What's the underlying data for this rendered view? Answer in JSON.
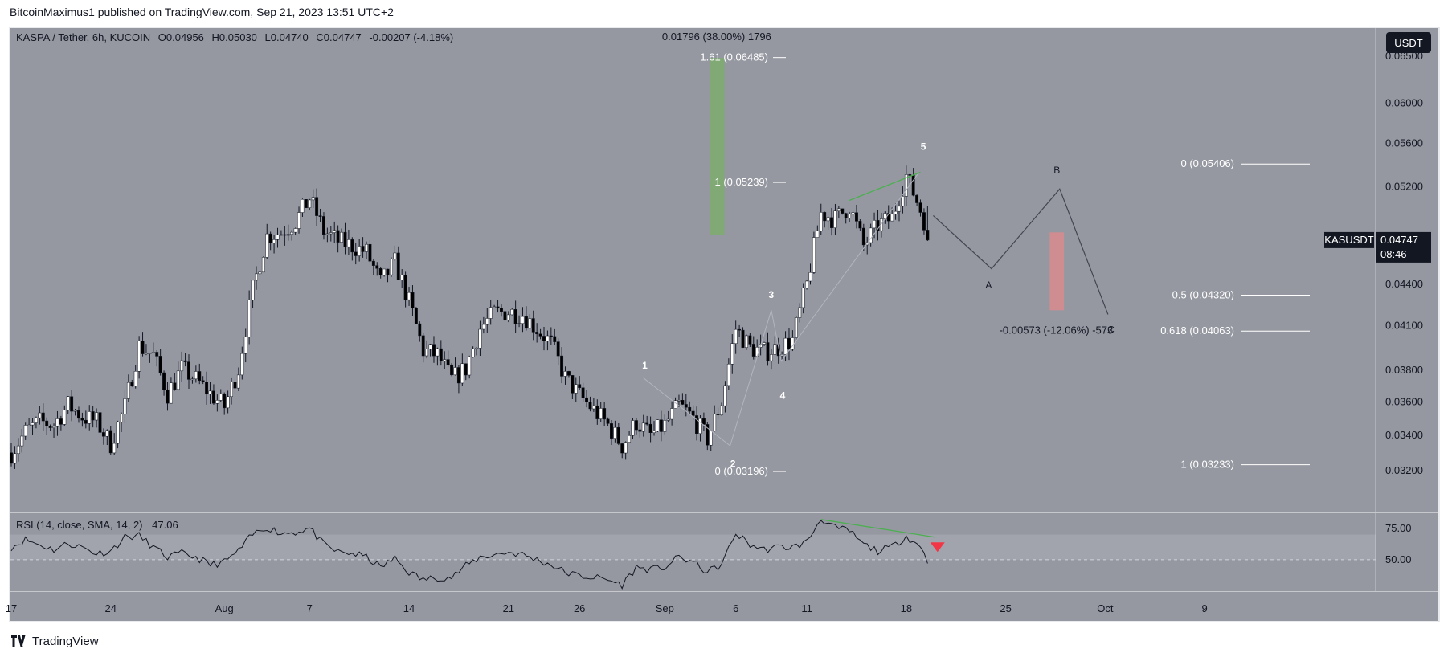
{
  "header": {
    "publisher": "BitcoinMaximus1 published on TradingView.com, Sep 21, 2023 13:51 UTC+2"
  },
  "footer": {
    "brand": "TradingView"
  },
  "legend": {
    "symbol": "KASPA / Tether, 6h, KUCOIN",
    "open_label": "O",
    "open": "0.04956",
    "high_label": "H",
    "high": "0.05030",
    "low_label": "L",
    "low": "0.04740",
    "close_label": "C",
    "close": "0.04747",
    "change": "-0.00207 (-4.18%)"
  },
  "currency_button": "USDT",
  "price_tag": {
    "symbol": "KASUSDT",
    "price": "0.04747",
    "countdown": "08:46"
  },
  "colors": {
    "plot_bg": "#9598a1",
    "up": "#ffffff",
    "down": "#000000",
    "wick": "#131722",
    "green_box": "#7dab6f",
    "red_box": "#d98b8e",
    "trend": "#4caf50",
    "rsi_line": "#131722",
    "rsi_arrow": "#f23645"
  },
  "chart_data": [
    {
      "type": "candlestick",
      "title": "KASPA / Tether, 6h, KUCOIN",
      "x_ticks": [
        "17",
        "24",
        "Aug",
        "7",
        "14",
        "21",
        "26",
        "Sep",
        "6",
        "11",
        "18",
        "25",
        "Oct",
        "9"
      ],
      "y_ticks": [
        "0.06500",
        "0.06000",
        "0.05600",
        "0.05200",
        "0.04400",
        "0.04100",
        "0.03800",
        "0.03600",
        "0.03400",
        "0.03200"
      ],
      "ylim": [
        0.0298,
        0.0682
      ],
      "y_scale": "log",
      "x_range_days": [
        "Jul 17",
        "Oct 9"
      ],
      "last_price": 0.04747,
      "close_anchors": [
        [
          0,
          0.033
        ],
        [
          1,
          0.0342
        ],
        [
          2,
          0.0348
        ],
        [
          3,
          0.0346
        ],
        [
          4,
          0.0358
        ],
        [
          5,
          0.0351
        ],
        [
          6,
          0.0348
        ],
        [
          7,
          0.0335
        ],
        [
          8,
          0.0357
        ],
        [
          9,
          0.0396
        ],
        [
          10,
          0.039
        ],
        [
          11,
          0.0365
        ],
        [
          12,
          0.0381
        ],
        [
          13,
          0.0374
        ],
        [
          14,
          0.0365
        ],
        [
          15,
          0.0357
        ],
        [
          16,
          0.0381
        ],
        [
          17,
          0.0436
        ],
        [
          18,
          0.0478
        ],
        [
          19,
          0.0481
        ],
        [
          20,
          0.049
        ],
        [
          21,
          0.051
        ],
        [
          22,
          0.0482
        ],
        [
          23,
          0.0474
        ],
        [
          24,
          0.047
        ],
        [
          25,
          0.0465
        ],
        [
          26,
          0.0441
        ],
        [
          27,
          0.0457
        ],
        [
          28,
          0.0427
        ],
        [
          29,
          0.0393
        ],
        [
          30,
          0.039
        ],
        [
          31,
          0.0374
        ],
        [
          32,
          0.0381
        ],
        [
          33,
          0.0408
        ],
        [
          34,
          0.0419
        ],
        [
          35,
          0.042
        ],
        [
          36,
          0.0418
        ],
        [
          37,
          0.0408
        ],
        [
          38,
          0.0398
        ],
        [
          39,
          0.0375
        ],
        [
          40,
          0.0364
        ],
        [
          41,
          0.0355
        ],
        [
          42,
          0.0346
        ],
        [
          43,
          0.0334
        ],
        [
          44,
          0.0348
        ],
        [
          45,
          0.034
        ],
        [
          46,
          0.0346
        ],
        [
          47,
          0.0358
        ],
        [
          48,
          0.035
        ],
        [
          49,
          0.0338
        ],
        [
          50,
          0.036
        ],
        [
          51,
          0.0408
        ],
        [
          52,
          0.0395
        ],
        [
          53,
          0.0392
        ],
        [
          54,
          0.0395
        ],
        [
          55,
          0.04
        ],
        [
          56,
          0.044
        ],
        [
          57,
          0.0497
        ],
        [
          58,
          0.0492
        ],
        [
          59,
          0.0503
        ],
        [
          60,
          0.047
        ],
        [
          61,
          0.0487
        ],
        [
          62,
          0.0493
        ],
        [
          63,
          0.053
        ],
        [
          64,
          0.05
        ],
        [
          64.75,
          0.04747
        ]
      ],
      "elliott_labels": [
        {
          "text": "1",
          "day": 44.6,
          "price": 0.0381
        },
        {
          "text": "2",
          "day": 50.8,
          "price": 0.0322
        },
        {
          "text": "3",
          "day": 53.5,
          "price": 0.043
        },
        {
          "text": "4",
          "day": 54.3,
          "price": 0.0362
        },
        {
          "text": "5",
          "day": 64.2,
          "price": 0.0554
        }
      ],
      "abc_labels": [
        {
          "text": "A",
          "day": 68.8,
          "price": 0.0437
        },
        {
          "text": "B",
          "day": 73.6,
          "price": 0.0532
        },
        {
          "text": "C",
          "day": 77.4,
          "price": 0.0405
        }
      ],
      "abc_path": [
        [
          64.9,
          0.0495
        ],
        [
          69.0,
          0.0452
        ],
        [
          73.8,
          0.0518
        ],
        [
          77.2,
          0.0418
        ]
      ],
      "wave_path": [
        [
          44.5,
          0.0375
        ],
        [
          50.6,
          0.0334
        ],
        [
          53.5,
          0.0421
        ],
        [
          54.2,
          0.0386
        ],
        [
          63.9,
          0.0533
        ]
      ],
      "fib_left": [
        {
          "label": "1.61 (0.06485)",
          "price": 0.06485
        },
        {
          "label": "1 (0.05239)",
          "price": 0.05239
        },
        {
          "label": "0 (0.03196)",
          "price": 0.03196
        }
      ],
      "fib_right": [
        {
          "label": "0 (0.05406)",
          "price": 0.05406
        },
        {
          "label": "0.5 (0.04320)",
          "price": 0.0432
        },
        {
          "label": "0.618 (0.04063)",
          "price": 0.04063
        },
        {
          "label": "1 (0.03233)",
          "price": 0.03233
        }
      ],
      "measure_up": {
        "label": "0.01796 (38.00%) 1796",
        "day_from": 49.2,
        "day_to": 50.2,
        "from": 0.0479,
        "to": 0.0648
      },
      "measure_down": {
        "label": "-0.00573 (-12.06%) -573",
        "day_from": 73.1,
        "day_to": 74.1,
        "from": 0.0481,
        "to": 0.0421
      },
      "trend_line": [
        [
          59.0,
          0.0508
        ],
        [
          64.0,
          0.0533
        ]
      ]
    },
    {
      "type": "line",
      "title": "RSI (14, close, SMA, 14, 2)",
      "value_label": "47.06",
      "last_value": 47.06,
      "y_ticks": [
        "75.00",
        "50.00"
      ],
      "ylim": [
        25,
        87
      ],
      "band": [
        50,
        70
      ],
      "anchors": [
        [
          0,
          60
        ],
        [
          1,
          66
        ],
        [
          2,
          62
        ],
        [
          3,
          58
        ],
        [
          4,
          63
        ],
        [
          5,
          60
        ],
        [
          6,
          55
        ],
        [
          7,
          57
        ],
        [
          8,
          68
        ],
        [
          9,
          69
        ],
        [
          10,
          60
        ],
        [
          11,
          52
        ],
        [
          12,
          55
        ],
        [
          13,
          52
        ],
        [
          14,
          46
        ],
        [
          15,
          48
        ],
        [
          16,
          57
        ],
        [
          17,
          70
        ],
        [
          18,
          76
        ],
        [
          19,
          71
        ],
        [
          20,
          72
        ],
        [
          21,
          75
        ],
        [
          22,
          62
        ],
        [
          23,
          56
        ],
        [
          24,
          55
        ],
        [
          25,
          52
        ],
        [
          26,
          44
        ],
        [
          27,
          51
        ],
        [
          28,
          40
        ],
        [
          29,
          34
        ],
        [
          30,
          36
        ],
        [
          31,
          36
        ],
        [
          32,
          45
        ],
        [
          33,
          52
        ],
        [
          34,
          54
        ],
        [
          35,
          56
        ],
        [
          36,
          54
        ],
        [
          37,
          50
        ],
        [
          38,
          46
        ],
        [
          39,
          40
        ],
        [
          40,
          37
        ],
        [
          41,
          36
        ],
        [
          42,
          34
        ],
        [
          43,
          30
        ],
        [
          44,
          44
        ],
        [
          45,
          42
        ],
        [
          46,
          44
        ],
        [
          47,
          52
        ],
        [
          48,
          48
        ],
        [
          49,
          40
        ],
        [
          50,
          46
        ],
        [
          51,
          71
        ],
        [
          52,
          62
        ],
        [
          53,
          58
        ],
        [
          54,
          60
        ],
        [
          55,
          60
        ],
        [
          56,
          64
        ],
        [
          57,
          83
        ],
        [
          58,
          75
        ],
        [
          59,
          73
        ],
        [
          60,
          62
        ],
        [
          61,
          57
        ],
        [
          62,
          60
        ],
        [
          63,
          69
        ],
        [
          64,
          60
        ],
        [
          64.75,
          47.06
        ]
      ],
      "trend_line": [
        [
          57.0,
          82
        ],
        [
          65.0,
          68
        ]
      ]
    }
  ]
}
